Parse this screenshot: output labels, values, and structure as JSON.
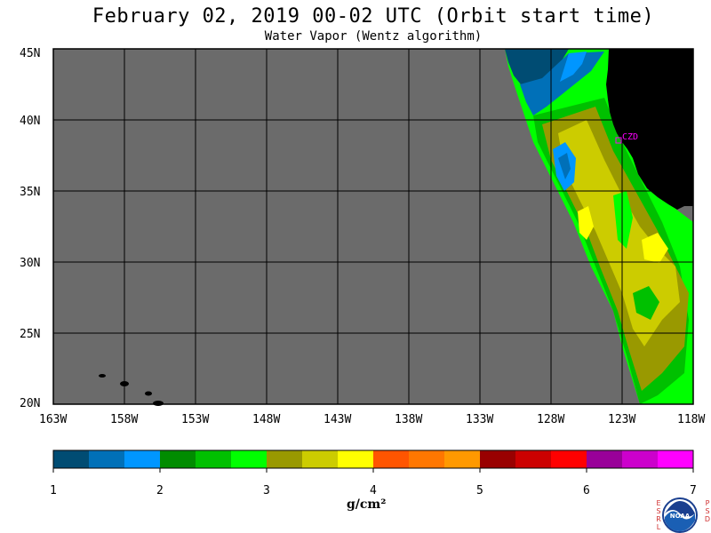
{
  "title": "February 02, 2019  00-02 UTC  (Orbit start time)",
  "subtitle": "Water Vapor (Wentz algorithm)",
  "map": {
    "lat_labels": [
      "45N",
      "40N",
      "35N",
      "30N",
      "25N",
      "20N"
    ],
    "lon_labels": [
      "163W",
      "158W",
      "153W",
      "148W",
      "143W",
      "138W",
      "133W",
      "128W",
      "123W",
      "118W"
    ],
    "station_label": "CZD",
    "no_data_color": "#6b6b6b",
    "land_color": "#000000",
    "station_color": "#ff00ff"
  },
  "colorbar": {
    "ticks": [
      "1",
      "2",
      "3",
      "4",
      "5",
      "6",
      "7"
    ],
    "units": "g/cm²",
    "colors": [
      "#004c73",
      "#0070b8",
      "#0096ff",
      "#008c00",
      "#00c000",
      "#00ff00",
      "#999900",
      "#cccc00",
      "#ffff00",
      "#ff5500",
      "#ff7700",
      "#ff9900",
      "#990000",
      "#cc0000",
      "#ff0000",
      "#990099",
      "#cc00cc",
      "#ff00ff"
    ]
  },
  "logo": {
    "text": "NOAA",
    "left_letters": "ESRL",
    "right_letters": "PSD"
  }
}
